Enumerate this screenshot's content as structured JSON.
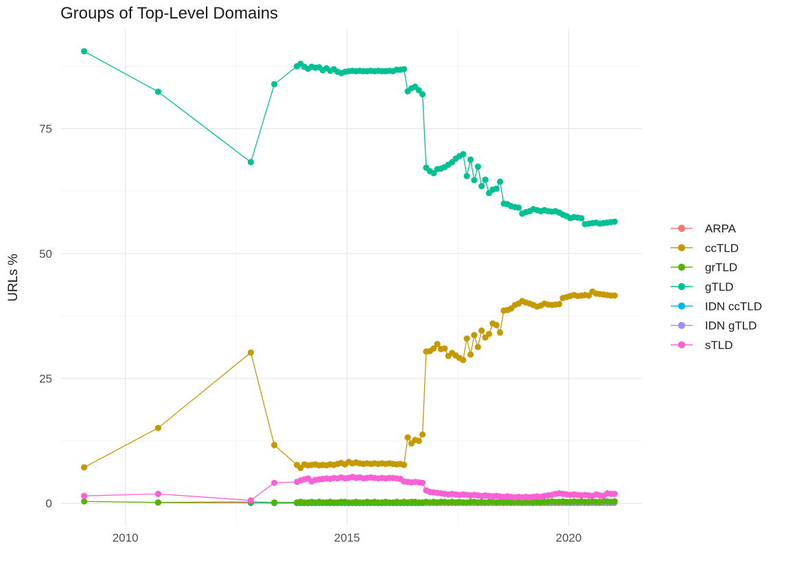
{
  "chart_data": {
    "type": "line",
    "title": "Groups of Top-Level Domains",
    "xlabel": "",
    "ylabel": "URLs %",
    "grid": "on",
    "background": "#ffffff",
    "major_grid_color": "#e8e8e8",
    "minor_grid_color": "#f2f2f2",
    "x_axis": {
      "range": [
        2008.55,
        2021.65
      ],
      "ticks": [
        "2010",
        "2015",
        "2020"
      ],
      "tick_values": [
        2010,
        2015,
        2020
      ],
      "minor_tick_values": [
        2012.5,
        2017.5
      ]
    },
    "y_axis": {
      "range": [
        -4.5,
        95
      ],
      "ticks": [
        "0",
        "25",
        "50",
        "75"
      ],
      "tick_values": [
        0,
        25,
        50,
        75
      ],
      "minor_tick_values": [
        12.5,
        37.5,
        62.5,
        87.5
      ]
    },
    "z_order": [
      "ARPA",
      "IDN ccTLD",
      "IDN gTLD",
      "grTLD",
      "ccTLD",
      "gTLD",
      "sTLD"
    ],
    "legend": {
      "position": "right",
      "items": [
        "ARPA",
        "ccTLD",
        "grTLD",
        "gTLD",
        "IDN ccTLD",
        "IDN gTLD",
        "sTLD"
      ]
    },
    "series": [
      {
        "name": "ARPA",
        "color": "#F8766D",
        "points": [
          [
            2010.74,
            0.15
          ],
          [
            2012.83,
            0.1
          ]
        ]
      },
      {
        "name": "ccTLD",
        "color": "#C49A00",
        "points": [
          [
            2009.07,
            7.2
          ],
          [
            2010.74,
            15.1
          ],
          [
            2012.83,
            30.2
          ],
          [
            2013.36,
            11.7
          ]
        ],
        "dense": {
          "start": 2013.87,
          "step": 0.08333,
          "values": [
            7.7,
            7.1,
            7.8,
            7.6,
            7.7,
            7.8,
            7.6,
            7.7,
            7.6,
            7.8,
            7.7,
            7.9,
            8.1,
            7.8,
            8.3,
            8.0,
            8.2,
            8.0,
            7.9,
            8.0,
            7.9,
            8.0,
            7.9,
            8.0,
            7.9,
            8.0,
            7.9,
            7.8,
            7.9,
            7.7,
            13.2,
            12.0,
            12.7,
            12.5,
            13.8,
            30.4,
            30.5,
            31.0,
            31.9,
            30.9,
            31.0,
            29.5,
            30.1,
            29.6,
            29.1,
            28.7,
            33.0,
            29.8,
            33.7,
            31.3,
            34.6,
            33.2,
            33.9,
            36.0,
            35.7,
            34.2,
            38.6,
            38.7,
            39.0,
            39.7,
            40.0,
            40.5,
            40.2,
            40.0,
            39.7,
            39.4,
            39.6,
            40.0,
            39.8,
            39.7,
            39.8,
            39.9,
            41.1,
            41.3,
            41.5,
            41.7,
            41.5,
            41.6,
            41.7,
            41.6,
            42.4,
            42.0,
            41.9,
            41.8,
            41.7,
            41.6,
            41.6
          ]
        }
      },
      {
        "name": "grTLD",
        "color": "#53B400",
        "points": [
          [
            2009.07,
            0.4
          ],
          [
            2010.74,
            0.2
          ],
          [
            2012.83,
            0.3
          ],
          [
            2013.36,
            0.2
          ]
        ],
        "dense": {
          "start": 2013.87,
          "step": 0.08333,
          "values": [
            0.2,
            0.3,
            0.2,
            0.2,
            0.3,
            0.2,
            0.3,
            0.2,
            0.2,
            0.3,
            0.2,
            0.2,
            0.3,
            0.3,
            0.2,
            0.2,
            0.3,
            0.2,
            0.2,
            0.3,
            0.2,
            0.3,
            0.2,
            0.2,
            0.3,
            0.2,
            0.2,
            0.3,
            0.2,
            0.3,
            0.2,
            0.3,
            0.3,
            0.2,
            0.2,
            0.3,
            0.2,
            0.3,
            0.2,
            0.3,
            0.3,
            0.2,
            0.3,
            0.2,
            0.3,
            0.2,
            0.2,
            0.3,
            0.3,
            0.2,
            0.3,
            0.2,
            0.3,
            0.3,
            0.2,
            0.3,
            0.2,
            0.3,
            0.2,
            0.3,
            0.3,
            0.2,
            0.3,
            0.3,
            0.2,
            0.3,
            0.2,
            0.3,
            0.3,
            0.4,
            0.3,
            0.3,
            0.4,
            0.3,
            0.3,
            0.4,
            0.3,
            0.4,
            0.3,
            0.3,
            0.4,
            0.3,
            0.3,
            0.4,
            0.4,
            0.3,
            0.4
          ]
        }
      },
      {
        "name": "gTLD",
        "color": "#00C094",
        "points": [
          [
            2009.07,
            90.5
          ],
          [
            2010.74,
            82.4
          ],
          [
            2012.83,
            68.3
          ],
          [
            2013.36,
            83.9
          ]
        ],
        "dense": {
          "start": 2013.87,
          "step": 0.08333,
          "values": [
            87.5,
            88.0,
            87.4,
            87.0,
            87.4,
            87.2,
            87.3,
            86.7,
            87.1,
            86.6,
            86.9,
            86.4,
            86.1,
            86.4,
            86.5,
            86.6,
            86.5,
            86.6,
            86.5,
            86.5,
            86.6,
            86.5,
            86.6,
            86.5,
            86.5,
            86.6,
            86.5,
            86.8,
            86.8,
            86.9,
            82.5,
            83.1,
            83.4,
            82.7,
            81.9,
            67.2,
            66.5,
            66.1,
            66.9,
            67.0,
            67.3,
            67.8,
            68.3,
            69.0,
            69.5,
            69.9,
            65.5,
            68.8,
            64.7,
            67.4,
            63.5,
            64.8,
            62.1,
            62.8,
            63.0,
            64.4,
            60.0,
            59.9,
            59.5,
            59.3,
            59.2,
            58.0,
            58.3,
            58.5,
            58.9,
            58.7,
            58.5,
            58.7,
            58.5,
            58.4,
            58.5,
            58.2,
            57.8,
            57.5,
            57.1,
            57.3,
            57.2,
            57.1,
            55.9,
            56.0,
            56.1,
            56.2,
            56.0,
            56.1,
            56.2,
            56.3,
            56.4
          ]
        }
      },
      {
        "name": "IDN ccTLD",
        "color": "#00B6EB",
        "points": [
          [
            2012.83,
            0.1
          ],
          [
            2013.36,
            0.05
          ]
        ],
        "dense": {
          "start": 2013.87,
          "step": 0.08333,
          "values": [
            0.05,
            0.05,
            0.05,
            0.05,
            0.05,
            0.05,
            0.05,
            0.05,
            0.05,
            0.05,
            0.05,
            0.05,
            0.05,
            0.05,
            0.05,
            0.05,
            0.05,
            0.05,
            0.05,
            0.05,
            0.05,
            0.05,
            0.05,
            0.05,
            0.05,
            0.05,
            0.05,
            0.05,
            0.05,
            0.05,
            0.05,
            0.05,
            0.05,
            0.05,
            0.05
          ]
        }
      },
      {
        "name": "IDN gTLD",
        "color": "#A58AFF",
        "points": [],
        "dense": {
          "start": 2016.78,
          "step": 0.08333,
          "values": [
            0.05,
            0.05,
            0.05,
            0.05,
            0.05,
            0.05,
            0.05,
            0.05,
            0.05,
            0.05,
            0.05,
            0.05,
            0.05,
            0.05,
            0.05,
            0.05,
            0.05,
            0.05,
            0.05,
            0.05,
            0.05,
            0.05,
            0.05,
            0.05,
            0.05,
            0.05,
            0.05,
            0.05,
            0.05,
            0.05,
            0.05,
            0.05,
            0.05,
            0.05,
            0.05,
            0.05,
            0.05,
            0.05,
            0.05,
            0.05,
            0.05,
            0.05,
            0.05,
            0.05,
            0.05,
            0.05,
            0.05,
            0.05,
            0.05,
            0.05,
            0.05,
            0.05
          ]
        }
      },
      {
        "name": "sTLD",
        "color": "#FB61D7",
        "points": [
          [
            2009.07,
            1.5
          ],
          [
            2010.74,
            1.9
          ],
          [
            2012.83,
            0.6
          ],
          [
            2013.36,
            4.1
          ]
        ],
        "dense": {
          "start": 2013.87,
          "step": 0.08333,
          "values": [
            4.3,
            4.6,
            4.8,
            5.0,
            4.4,
            4.7,
            4.8,
            4.9,
            5.0,
            4.9,
            5.1,
            5.0,
            5.2,
            5.0,
            5.1,
            5.3,
            5.1,
            5.2,
            5.0,
            5.1,
            5.2,
            5.1,
            5.0,
            5.1,
            5.0,
            5.1,
            5.1,
            5.0,
            4.9,
            4.4,
            4.3,
            4.2,
            4.3,
            4.2,
            4.1,
            2.6,
            2.3,
            2.2,
            2.1,
            2.0,
            1.9,
            1.8,
            1.9,
            1.8,
            1.7,
            1.8,
            1.7,
            1.6,
            1.7,
            1.6,
            1.5,
            1.6,
            1.5,
            1.4,
            1.5,
            1.4,
            1.3,
            1.4,
            1.3,
            1.2,
            1.3,
            1.2,
            1.3,
            1.2,
            1.3,
            1.4,
            1.3,
            1.5,
            1.6,
            1.7,
            1.9,
            2.0,
            1.9,
            1.8,
            1.7,
            1.8,
            1.7,
            1.6,
            1.7,
            1.6,
            1.5,
            1.8,
            1.6,
            1.5,
            2.0,
            1.9,
            1.9
          ]
        }
      }
    ]
  }
}
